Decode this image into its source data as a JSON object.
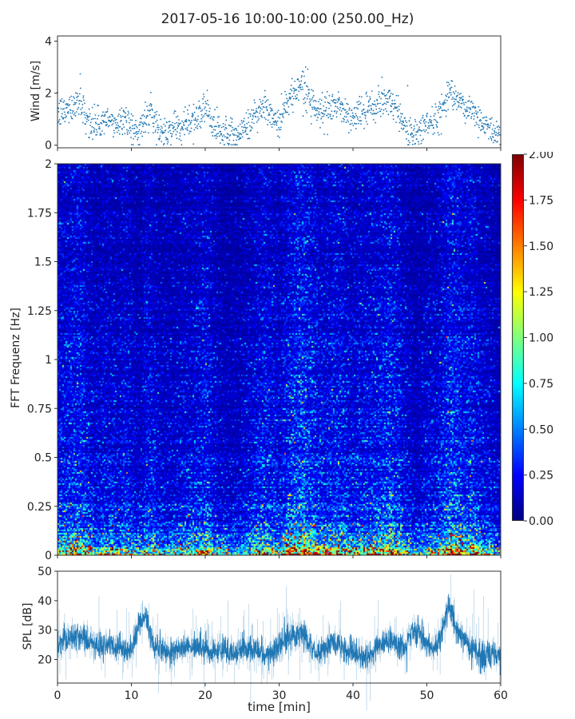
{
  "title": "2017-05-16 10:00-10:00 (250.00_Hz)",
  "chart_data": [
    {
      "type": "scatter",
      "name": "wind",
      "ylabel": "Wind [m/s]",
      "xlim": [
        0,
        60
      ],
      "ylim": [
        -0.1,
        4.2
      ],
      "yticks": [
        "0",
        "2",
        "4"
      ],
      "color": "#1f77b4",
      "x_minutes": [
        0,
        1,
        2,
        3,
        4,
        5,
        6,
        7,
        8,
        9,
        10,
        11,
        12,
        13,
        14,
        15,
        16,
        17,
        18,
        19,
        20,
        21,
        22,
        23,
        24,
        25,
        26,
        27,
        28,
        29,
        30,
        31,
        32,
        33,
        34,
        35,
        36,
        37,
        38,
        39,
        40,
        41,
        42,
        43,
        44,
        45,
        46,
        47,
        48,
        49,
        50,
        51,
        52,
        53,
        54,
        55,
        56,
        57,
        58,
        59,
        60
      ],
      "values": [
        1.2,
        1.3,
        1.5,
        1.8,
        1.0,
        0.7,
        0.9,
        0.9,
        0.8,
        1.1,
        0.7,
        0.4,
        1.2,
        1.0,
        0.5,
        0.6,
        0.7,
        0.9,
        0.9,
        1.1,
        1.5,
        0.8,
        0.5,
        0.4,
        0.4,
        0.6,
        0.8,
        1.3,
        1.5,
        1.1,
        0.9,
        1.6,
        2.0,
        2.4,
        1.9,
        1.4,
        1.2,
        1.4,
        1.6,
        1.2,
        1.0,
        1.3,
        1.3,
        1.5,
        1.7,
        1.8,
        1.3,
        0.8,
        0.4,
        0.5,
        0.9,
        0.8,
        1.4,
        2.1,
        2.0,
        1.3,
        1.5,
        1.0,
        0.8,
        0.5,
        0.3
      ]
    },
    {
      "type": "heatmap",
      "name": "spectrogram",
      "ylabel": "FFT Frequenz [Hz]",
      "xlim": [
        0,
        60
      ],
      "ylim": [
        0,
        2
      ],
      "yticks": [
        "0",
        "0.25",
        "0.5",
        "0.75",
        "1",
        "1.25",
        "1.5",
        "1.75",
        "2"
      ],
      "colormap": "jet",
      "clim": [
        0,
        2
      ],
      "colorbar_ticks": [
        "0.00",
        "0.25",
        "0.50",
        "0.75",
        "1.00",
        "1.25",
        "1.50",
        "1.75",
        "2.00"
      ],
      "note": "power concentrated below 0.25 Hz, intensity follows wind speed"
    },
    {
      "type": "line",
      "name": "spl",
      "ylabel": "SPL [dB]",
      "xlabel": "time [min]",
      "xlim": [
        0,
        60
      ],
      "ylim": [
        12,
        50
      ],
      "yticks": [
        "20",
        "30",
        "40",
        "50"
      ],
      "xticks": [
        "0",
        "10",
        "20",
        "30",
        "40",
        "50",
        "60"
      ],
      "color": "#1f77b4",
      "x_minutes": [
        0,
        1,
        2,
        3,
        4,
        5,
        6,
        7,
        8,
        9,
        10,
        11,
        12,
        13,
        14,
        15,
        16,
        17,
        18,
        19,
        20,
        21,
        22,
        23,
        24,
        25,
        26,
        27,
        28,
        29,
        30,
        31,
        32,
        33,
        34,
        35,
        36,
        37,
        38,
        39,
        40,
        41,
        42,
        43,
        44,
        45,
        46,
        47,
        48,
        49,
        50,
        51,
        52,
        53,
        54,
        55,
        56,
        57,
        58,
        59,
        60
      ],
      "values": [
        24,
        27,
        27,
        28,
        27,
        25,
        24,
        25,
        24,
        24,
        23,
        32,
        34,
        25,
        23,
        22,
        23,
        24,
        24,
        25,
        24,
        23,
        23,
        23,
        22,
        24,
        24,
        23,
        22,
        22,
        25,
        27,
        28,
        29,
        26,
        22,
        23,
        26,
        25,
        23,
        22,
        21,
        21,
        23,
        26,
        26,
        25,
        24,
        30,
        29,
        25,
        24,
        29,
        38,
        31,
        27,
        24,
        22,
        21,
        22,
        21
      ]
    }
  ]
}
